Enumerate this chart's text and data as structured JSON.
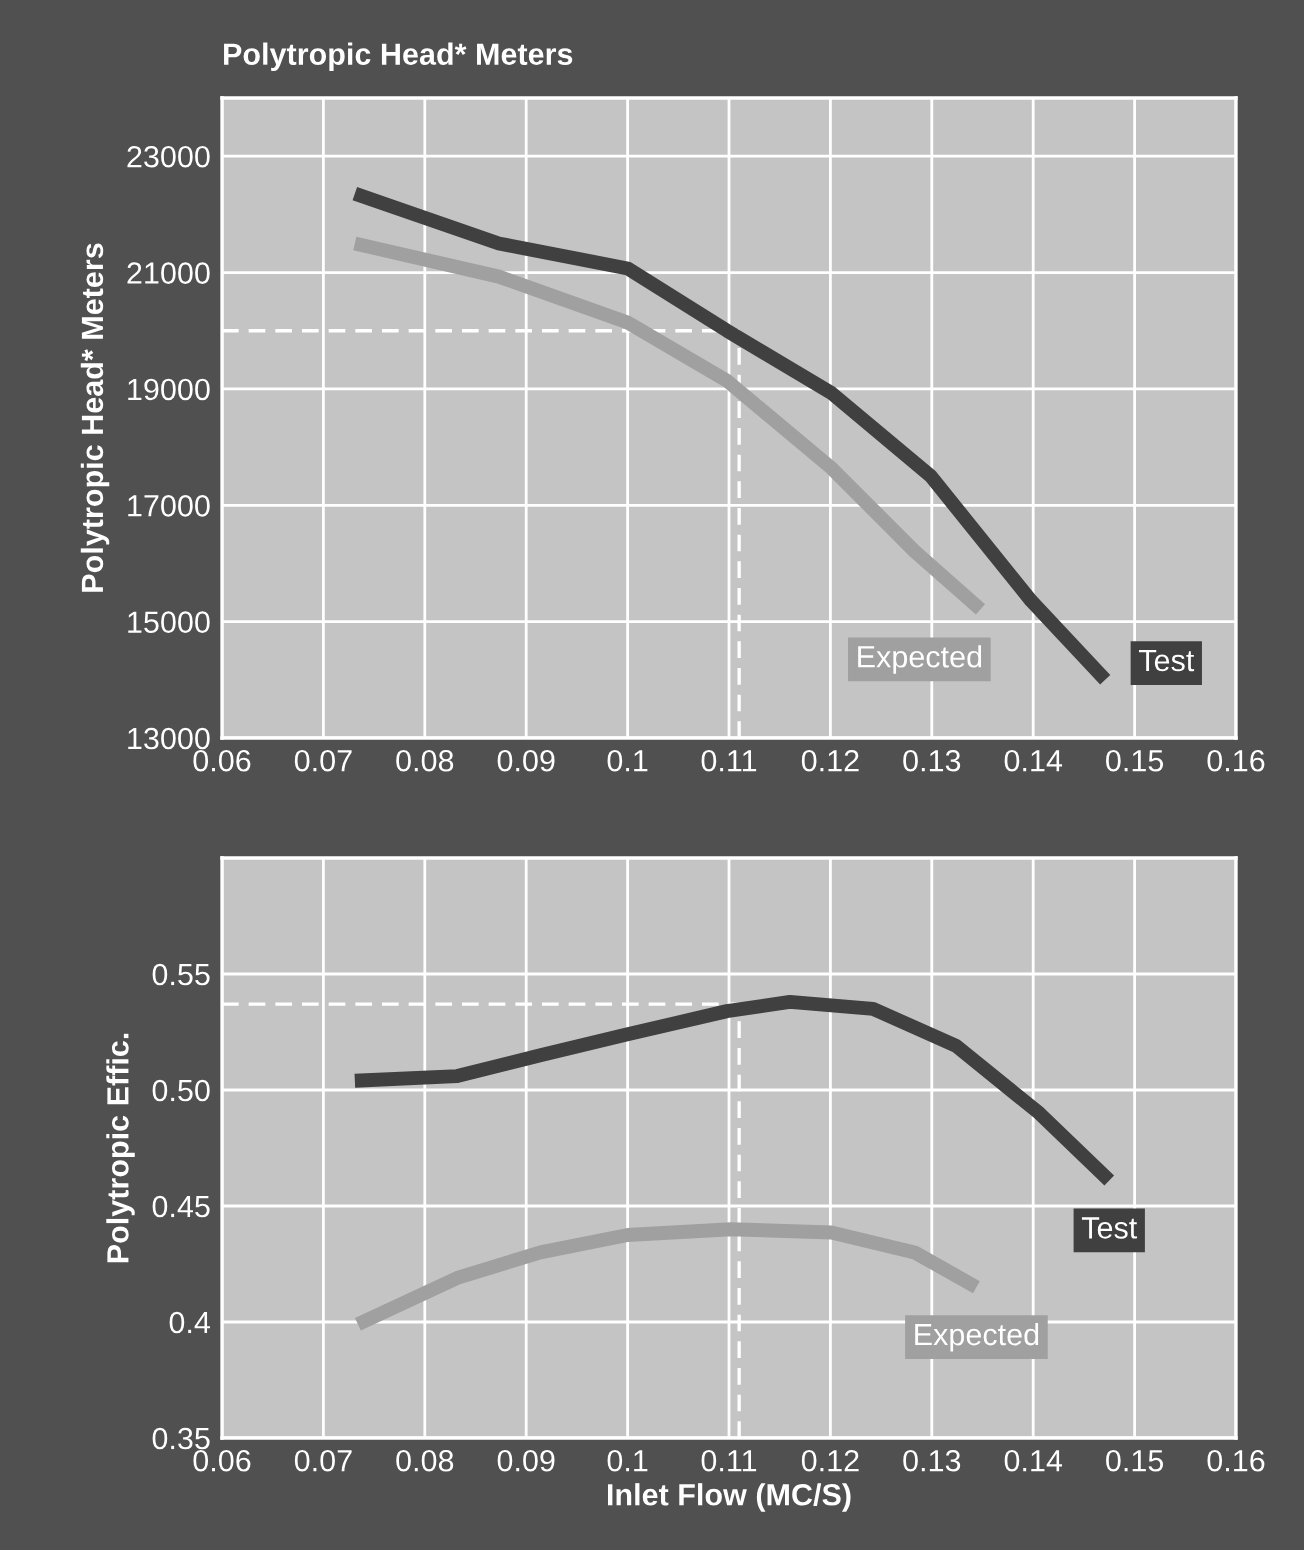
{
  "chart_data": [
    {
      "type": "line",
      "title": "Polytropic Head* Meters",
      "ylabel": "Polytropic Head* Meters",
      "xlim": [
        0.06,
        0.16
      ],
      "xticks": [
        0.06,
        0.07,
        0.08,
        0.09,
        {
          "value": 0.1,
          "label": "0.1"
        },
        0.11,
        0.12,
        0.13,
        0.14,
        0.15,
        0.16
      ],
      "ylim": [
        13000,
        24000
      ],
      "yticks": [
        13000,
        15000,
        17000,
        19000,
        21000,
        23000
      ],
      "grid": true,
      "legend": false,
      "series": [
        {
          "name": "Test",
          "color": "#404040",
          "x": [
            0.0731,
            0.0873,
            0.1,
            0.1098,
            0.1201,
            0.1299,
            0.1398,
            0.1471
          ],
          "values": [
            22357,
            21500,
            21070,
            20000,
            18930,
            17500,
            15357,
            14000
          ]
        },
        {
          "name": "Expected",
          "color": "#a0a0a0",
          "x": [
            0.0731,
            0.0873,
            0.1,
            0.1098,
            0.1201,
            0.1283,
            0.1348
          ],
          "values": [
            21500,
            20930,
            20140,
            19140,
            17640,
            16210,
            15210
          ]
        }
      ],
      "ref_lines": [
        {
          "axis": "y",
          "value": 20000,
          "color": "#ffffff",
          "line_style": "dashed"
        },
        {
          "axis": "x",
          "value": 0.111,
          "color": "#ffffff",
          "line_style": "dashed"
        }
      ]
    },
    {
      "type": "line",
      "xlabel": "Inlet Flow (MC/S)",
      "ylabel": "Polytropic Effic.",
      "xlim": [
        0.06,
        0.16
      ],
      "xticks": [
        0.06,
        0.07,
        0.08,
        0.09,
        {
          "value": 0.1,
          "label": "0.1"
        },
        0.11,
        0.12,
        0.13,
        0.14,
        0.15,
        0.16
      ],
      "ylim": [
        0.35,
        0.6
      ],
      "yticks": [
        0.35,
        {
          "value": 0.4,
          "label": "0.4"
        },
        0.45,
        {
          "value": 0.5,
          "label": "0.50"
        },
        0.55
      ],
      "grid": true,
      "legend": false,
      "series": [
        {
          "name": "Test",
          "color": "#404040",
          "x": [
            0.0731,
            0.0832,
            0.0914,
            0.1,
            0.1098,
            0.116,
            0.1242,
            0.1324,
            0.1406,
            0.1475
          ],
          "values": [
            0.504,
            0.506,
            0.515,
            0.524,
            0.534,
            0.538,
            0.535,
            0.519,
            0.49,
            0.461
          ]
        },
        {
          "name": "Expected",
          "color": "#a0a0a0",
          "x": [
            0.0734,
            0.0832,
            0.0914,
            0.1,
            0.1102,
            0.1201,
            0.1283,
            0.1344
          ],
          "values": [
            0.399,
            0.419,
            0.43,
            0.4375,
            0.44,
            0.4386,
            0.43,
            0.415
          ]
        }
      ],
      "ref_lines": [
        {
          "axis": "y",
          "value": 0.537,
          "color": "#ffffff",
          "line_style": "dashed"
        },
        {
          "axis": "x",
          "value": 0.111,
          "color": "#ffffff",
          "line_style": "dashed"
        }
      ]
    }
  ]
}
